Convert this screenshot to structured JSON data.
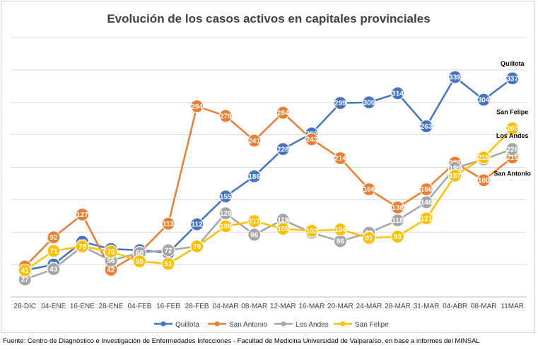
{
  "source": "Fuente: Centro de Diagnóstico e Investigación de Enfermedades Infecciones - Facultad de Medicina Universidad de Valparaíso, en base a informes del MINSAL",
  "chart_data": {
    "type": "line",
    "title": "Evolución de los casos activos en capitales provinciales",
    "xlabel": "",
    "ylabel": "",
    "categories": [
      "28-DIC",
      "04-ENE",
      "16-ENE",
      "28-ENE",
      "04-FEB",
      "16-FEB",
      "28-FEB",
      "04-MAR",
      "08-MAR",
      "12-MAR",
      "16-MAR",
      "20-MAR",
      "24-MAR",
      "28-MAR",
      "31-MAR",
      "04-ABR",
      "08-MAR",
      "11MAR"
    ],
    "ylim": [
      0,
      400
    ],
    "grid": true,
    "legend_position": "bottom",
    "series": [
      {
        "name": "Quillota",
        "color": "#4472C4",
        "end_label": "Quillota",
        "values": [
          41,
          50,
          85,
          74,
          72,
          68,
          112,
          155,
          186,
          228,
          252,
          299,
          300,
          314,
          263,
          339,
          304,
          337
        ]
      },
      {
        "name": "San Antonio",
        "color": "#ED7D31",
        "end_label": "San Antonio",
        "values": [
          47,
          92,
          127,
          42,
          68,
          113,
          294,
          279,
          241,
          284,
          243,
          214,
          166,
          138,
          166,
          207,
          180,
          215
        ]
      },
      {
        "name": "Los Andes",
        "color": "#A5A5A5",
        "end_label": "Los Andes",
        "values": [
          27,
          43,
          78,
          56,
          68,
          72,
          78,
          129,
          96,
          119,
          99,
          86,
          99,
          118,
          146,
          199,
          212,
          228
        ]
      },
      {
        "name": "San Felipe",
        "color": "#FFC000",
        "end_label": "San Felipe",
        "values": [
          41,
          71,
          78,
          70,
          55,
          51,
          78,
          109,
          117,
          105,
          102,
          104,
          91,
          93,
          121,
          187,
          215,
          260
        ]
      }
    ]
  }
}
